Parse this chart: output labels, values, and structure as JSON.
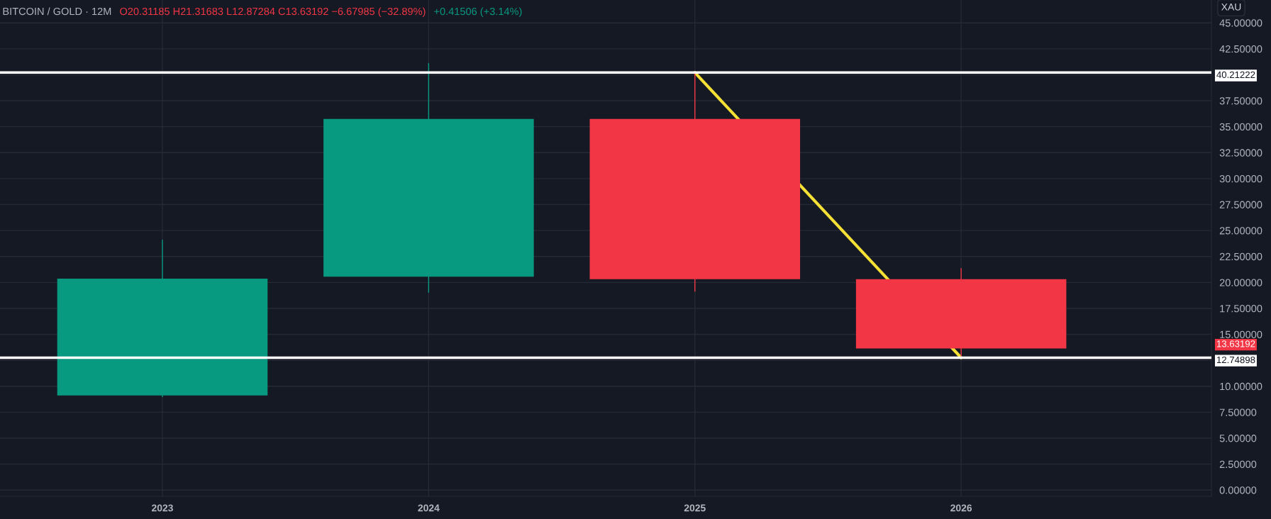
{
  "chart_data": {
    "type": "candlestick",
    "title": "BITCOIN / GOLD · 12M",
    "ylabel": "XAU",
    "categories": [
      "2023",
      "2024",
      "2025",
      "2026"
    ],
    "ohlc": [
      [
        9.11,
        24.05,
        9.0,
        20.37
      ],
      [
        20.56,
        41.08,
        19.07,
        35.74
      ],
      [
        35.74,
        40.21,
        19.16,
        20.31
      ],
      [
        20.31185,
        21.31683,
        12.87284,
        13.63192
      ]
    ],
    "colors": [
      "#089981",
      "#089981",
      "#f23645",
      "#f23645"
    ],
    "series": [
      {
        "type": "line",
        "color": "#f5e036",
        "values": [
          null,
          null,
          40.21,
          12.75
        ]
      }
    ],
    "ref_lines": [
      {
        "axis": "y",
        "value": 40.21222,
        "label": "40.21222",
        "color": "#ffffff",
        "line_style": "solid"
      },
      {
        "axis": "y",
        "value": 12.74898,
        "label": "12.74898",
        "color": "#ffffff",
        "line_style": "solid"
      }
    ],
    "annotations": [
      "O20.31185 H21.31683 L12.87284 C13.63192 −6.67985 (−32.89%)",
      "+0.41506 (+3.14%)",
      "13.63192"
    ],
    "ylim": [
      -0.6,
      47.2
    ],
    "yticks": [
      {
        "value": 0,
        "label": "0.00000"
      },
      {
        "value": 2.5,
        "label": "2.50000"
      },
      {
        "value": 5,
        "label": "5.00000"
      },
      {
        "value": 7.5,
        "label": "7.50000"
      },
      {
        "value": 10,
        "label": "10.00000"
      },
      {
        "value": 12.5,
        "label": null
      },
      {
        "value": 15,
        "label": "15.00000"
      },
      {
        "value": 17.5,
        "label": "17.50000"
      },
      {
        "value": 20,
        "label": "20.00000"
      },
      {
        "value": 22.5,
        "label": "22.50000"
      },
      {
        "value": 25,
        "label": "25.00000"
      },
      {
        "value": 27.5,
        "label": "27.50000"
      },
      {
        "value": 30,
        "label": "30.00000"
      },
      {
        "value": 32.5,
        "label": "32.50000"
      },
      {
        "value": 35,
        "label": "35.00000"
      },
      {
        "value": 37.5,
        "label": "37.50000"
      },
      {
        "value": 40,
        "label": null
      },
      {
        "value": 42.5,
        "label": "42.50000"
      },
      {
        "value": 45,
        "label": "45.00000"
      }
    ],
    "grid": true
  }
}
